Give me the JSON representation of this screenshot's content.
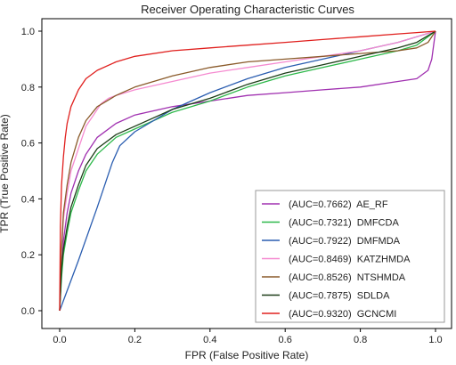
{
  "chart_data": {
    "type": "line",
    "title": "Receiver Operating Characteristic Curves",
    "xlabel": "FPR (False Positive Rate)",
    "ylabel": "TPR (True Positive Rate)",
    "xlim": [
      0,
      1
    ],
    "ylim": [
      0,
      1
    ],
    "xticks": [
      0.0,
      0.2,
      0.4,
      0.6,
      0.8,
      1.0
    ],
    "xtick_labels": [
      "0.0",
      "0.2",
      "0.4",
      "0.6",
      "0.8",
      "1.0"
    ],
    "yticks": [
      0.0,
      0.2,
      0.4,
      0.6,
      0.8,
      1.0
    ],
    "ytick_labels": [
      "0.0",
      "0.2",
      "0.4",
      "0.6",
      "0.8",
      "1.0"
    ],
    "grid": false,
    "legend_position": "lower-right",
    "series": [
      {
        "name": "(AUC=0.7662)  AE_RF",
        "color": "#a030b0",
        "x": [
          0,
          0.005,
          0.01,
          0.02,
          0.03,
          0.05,
          0.07,
          0.1,
          0.15,
          0.2,
          0.3,
          0.4,
          0.5,
          0.6,
          0.7,
          0.8,
          0.9,
          0.95,
          0.98,
          0.99,
          1.0
        ],
        "y": [
          0,
          0.15,
          0.25,
          0.35,
          0.42,
          0.5,
          0.56,
          0.62,
          0.67,
          0.7,
          0.73,
          0.75,
          0.77,
          0.78,
          0.79,
          0.8,
          0.82,
          0.83,
          0.86,
          0.9,
          1.0
        ]
      },
      {
        "name": "(AUC=0.7321)  DMFCDA",
        "color": "#2db84a",
        "x": [
          0,
          0.005,
          0.01,
          0.02,
          0.03,
          0.05,
          0.07,
          0.1,
          0.15,
          0.2,
          0.3,
          0.4,
          0.5,
          0.6,
          0.7,
          0.8,
          0.9,
          0.95,
          1.0
        ],
        "y": [
          0,
          0.12,
          0.2,
          0.28,
          0.35,
          0.43,
          0.5,
          0.56,
          0.62,
          0.65,
          0.71,
          0.75,
          0.8,
          0.84,
          0.87,
          0.9,
          0.93,
          0.95,
          1.0
        ]
      },
      {
        "name": "(AUC=0.7922)  DMFMDA",
        "color": "#2a5db0",
        "x": [
          0,
          0.05,
          0.1,
          0.14,
          0.16,
          0.2,
          0.3,
          0.4,
          0.5,
          0.6,
          0.7,
          0.8,
          0.9,
          1.0
        ],
        "y": [
          0,
          0.18,
          0.37,
          0.53,
          0.59,
          0.64,
          0.72,
          0.78,
          0.83,
          0.87,
          0.9,
          0.93,
          0.96,
          1.0
        ]
      },
      {
        "name": "(AUC=0.8469)  KATZHMDA",
        "color": "#f58ad0",
        "x": [
          0,
          0.005,
          0.01,
          0.02,
          0.03,
          0.05,
          0.07,
          0.09,
          0.11,
          0.13,
          0.15,
          0.2,
          0.3,
          0.4,
          0.5,
          0.6,
          0.7,
          0.8,
          0.9,
          1.0
        ],
        "y": [
          0,
          0.2,
          0.33,
          0.42,
          0.5,
          0.58,
          0.66,
          0.7,
          0.74,
          0.76,
          0.77,
          0.79,
          0.82,
          0.85,
          0.87,
          0.89,
          0.91,
          0.93,
          0.96,
          1.0
        ]
      },
      {
        "name": "(AUC=0.8526)  NTSHMDA",
        "color": "#8a5a2a",
        "x": [
          0,
          0.005,
          0.01,
          0.02,
          0.03,
          0.05,
          0.07,
          0.1,
          0.15,
          0.2,
          0.3,
          0.4,
          0.5,
          0.6,
          0.7,
          0.8,
          0.9,
          0.95,
          0.98,
          1.0
        ],
        "y": [
          0,
          0.22,
          0.35,
          0.45,
          0.53,
          0.62,
          0.68,
          0.73,
          0.77,
          0.8,
          0.84,
          0.87,
          0.89,
          0.9,
          0.91,
          0.92,
          0.93,
          0.94,
          0.96,
          1.0
        ]
      },
      {
        "name": "(AUC=0.7875)  SDLDA",
        "color": "#1d3d18",
        "x": [
          0,
          0.005,
          0.01,
          0.02,
          0.03,
          0.05,
          0.07,
          0.1,
          0.15,
          0.2,
          0.3,
          0.4,
          0.5,
          0.6,
          0.7,
          0.8,
          0.9,
          0.95,
          1.0
        ],
        "y": [
          0,
          0.15,
          0.22,
          0.3,
          0.37,
          0.45,
          0.52,
          0.58,
          0.63,
          0.66,
          0.72,
          0.76,
          0.81,
          0.85,
          0.88,
          0.91,
          0.94,
          0.96,
          1.0
        ]
      },
      {
        "name": "(AUC=0.9320)  GCNCMI",
        "color": "#e0201e",
        "x": [
          0,
          0.002,
          0.005,
          0.01,
          0.015,
          0.02,
          0.03,
          0.05,
          0.07,
          0.1,
          0.15,
          0.2,
          0.3,
          0.4,
          0.5,
          0.6,
          0.7,
          0.8,
          0.9,
          0.95,
          1.0
        ],
        "y": [
          0,
          0.3,
          0.45,
          0.55,
          0.62,
          0.67,
          0.73,
          0.79,
          0.83,
          0.86,
          0.89,
          0.91,
          0.93,
          0.94,
          0.95,
          0.96,
          0.97,
          0.98,
          0.99,
          0.995,
          1.0
        ]
      }
    ]
  }
}
